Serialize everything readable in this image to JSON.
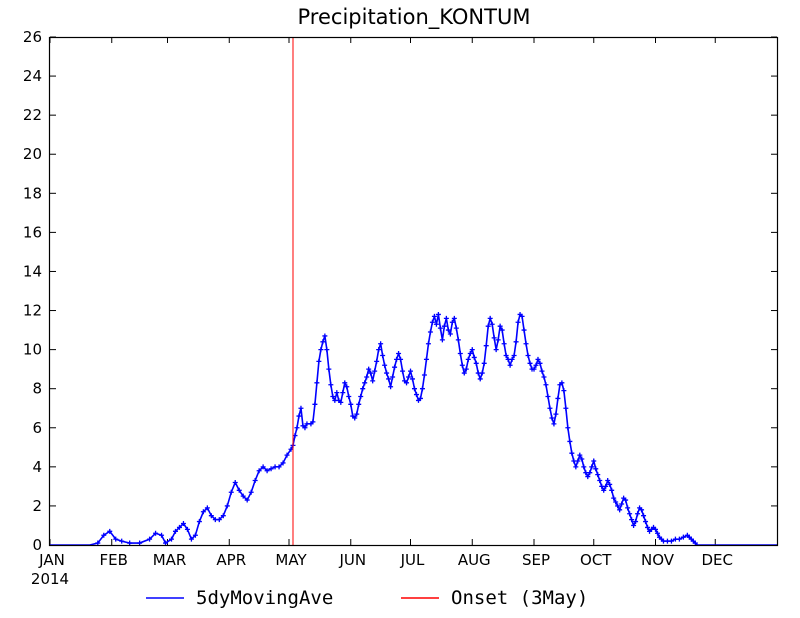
{
  "chart_data": {
    "type": "line",
    "title": "Precipitation_KONTUM",
    "year_label": "2014",
    "xlabel": "",
    "ylabel": "",
    "ylim": [
      0,
      26
    ],
    "y_ticks": [
      0,
      2,
      4,
      6,
      8,
      10,
      12,
      14,
      16,
      18,
      20,
      22,
      24,
      26
    ],
    "x_domain_days": [
      0,
      365
    ],
    "month_ticks": [
      {
        "label": "JAN",
        "day": 0
      },
      {
        "label": "FEB",
        "day": 31
      },
      {
        "label": "MAR",
        "day": 59
      },
      {
        "label": "APR",
        "day": 90
      },
      {
        "label": "MAY",
        "day": 120
      },
      {
        "label": "JUN",
        "day": 151
      },
      {
        "label": "JUL",
        "day": 181
      },
      {
        "label": "AUG",
        "day": 212
      },
      {
        "label": "SEP",
        "day": 243
      },
      {
        "label": "OCT",
        "day": 273
      },
      {
        "label": "NOV",
        "day": 304
      },
      {
        "label": "DEC",
        "day": 334
      }
    ],
    "grid": false,
    "legend_position": "bottom",
    "onset": {
      "name": "Onset (3May)",
      "day": 122,
      "color": "#ff0000"
    },
    "series": [
      {
        "name": "5dyMovingAve",
        "color": "#0000ff",
        "points": [
          [
            0,
            0.0
          ],
          [
            5,
            0.0
          ],
          [
            10,
            0.0
          ],
          [
            15,
            0.0
          ],
          [
            20,
            0.0
          ],
          [
            24,
            0.1
          ],
          [
            27,
            0.5
          ],
          [
            30,
            0.7
          ],
          [
            33,
            0.3
          ],
          [
            36,
            0.2
          ],
          [
            40,
            0.1
          ],
          [
            45,
            0.1
          ],
          [
            50,
            0.3
          ],
          [
            53,
            0.6
          ],
          [
            56,
            0.5
          ],
          [
            58,
            0.1
          ],
          [
            61,
            0.3
          ],
          [
            63,
            0.7
          ],
          [
            65,
            0.9
          ],
          [
            67,
            1.1
          ],
          [
            69,
            0.8
          ],
          [
            71,
            0.3
          ],
          [
            73,
            0.5
          ],
          [
            75,
            1.2
          ],
          [
            77,
            1.7
          ],
          [
            79,
            1.9
          ],
          [
            81,
            1.5
          ],
          [
            83,
            1.3
          ],
          [
            85,
            1.3
          ],
          [
            87,
            1.5
          ],
          [
            89,
            2.0
          ],
          [
            91,
            2.7
          ],
          [
            93,
            3.2
          ],
          [
            95,
            2.8
          ],
          [
            97,
            2.5
          ],
          [
            99,
            2.3
          ],
          [
            101,
            2.7
          ],
          [
            103,
            3.3
          ],
          [
            105,
            3.8
          ],
          [
            107,
            4.0
          ],
          [
            109,
            3.8
          ],
          [
            111,
            3.9
          ],
          [
            113,
            4.0
          ],
          [
            115,
            4.0
          ],
          [
            117,
            4.2
          ],
          [
            119,
            4.6
          ],
          [
            121,
            4.9
          ],
          [
            122,
            5.1
          ],
          [
            123,
            5.6
          ],
          [
            124,
            6.0
          ],
          [
            125,
            6.6
          ],
          [
            126,
            7.0
          ],
          [
            127,
            6.1
          ],
          [
            128,
            6.0
          ],
          [
            129,
            6.2
          ],
          [
            131,
            6.2
          ],
          [
            132,
            6.3
          ],
          [
            133,
            7.2
          ],
          [
            134,
            8.3
          ],
          [
            135,
            9.4
          ],
          [
            136,
            10.0
          ],
          [
            137,
            10.4
          ],
          [
            138,
            10.7
          ],
          [
            139,
            10.0
          ],
          [
            140,
            9.0
          ],
          [
            141,
            8.2
          ],
          [
            142,
            7.6
          ],
          [
            143,
            7.4
          ],
          [
            144,
            7.8
          ],
          [
            145,
            7.4
          ],
          [
            146,
            7.3
          ],
          [
            147,
            7.8
          ],
          [
            148,
            8.3
          ],
          [
            149,
            8.1
          ],
          [
            150,
            7.6
          ],
          [
            151,
            7.2
          ],
          [
            152,
            6.6
          ],
          [
            153,
            6.5
          ],
          [
            154,
            6.7
          ],
          [
            155,
            7.2
          ],
          [
            156,
            7.6
          ],
          [
            157,
            8.0
          ],
          [
            158,
            8.3
          ],
          [
            159,
            8.6
          ],
          [
            160,
            9.0
          ],
          [
            161,
            8.8
          ],
          [
            162,
            8.4
          ],
          [
            163,
            8.9
          ],
          [
            164,
            9.4
          ],
          [
            165,
            10.0
          ],
          [
            166,
            10.3
          ],
          [
            167,
            9.7
          ],
          [
            168,
            9.2
          ],
          [
            169,
            8.8
          ],
          [
            170,
            8.5
          ],
          [
            171,
            8.1
          ],
          [
            172,
            8.6
          ],
          [
            173,
            9.1
          ],
          [
            174,
            9.5
          ],
          [
            175,
            9.8
          ],
          [
            176,
            9.5
          ],
          [
            177,
            8.9
          ],
          [
            178,
            8.4
          ],
          [
            179,
            8.3
          ],
          [
            180,
            8.6
          ],
          [
            181,
            8.9
          ],
          [
            182,
            8.5
          ],
          [
            183,
            8.0
          ],
          [
            184,
            7.7
          ],
          [
            185,
            7.4
          ],
          [
            186,
            7.5
          ],
          [
            187,
            8.0
          ],
          [
            188,
            8.7
          ],
          [
            189,
            9.5
          ],
          [
            190,
            10.3
          ],
          [
            191,
            10.9
          ],
          [
            192,
            11.4
          ],
          [
            193,
            11.7
          ],
          [
            194,
            11.3
          ],
          [
            195,
            11.8
          ],
          [
            196,
            11.1
          ],
          [
            197,
            10.5
          ],
          [
            198,
            11.2
          ],
          [
            199,
            11.6
          ],
          [
            200,
            11.0
          ],
          [
            201,
            10.8
          ],
          [
            202,
            11.4
          ],
          [
            203,
            11.6
          ],
          [
            204,
            11.1
          ],
          [
            205,
            10.5
          ],
          [
            206,
            9.8
          ],
          [
            207,
            9.2
          ],
          [
            208,
            8.8
          ],
          [
            209,
            9.0
          ],
          [
            210,
            9.5
          ],
          [
            211,
            9.8
          ],
          [
            212,
            10.0
          ],
          [
            213,
            9.6
          ],
          [
            214,
            9.3
          ],
          [
            215,
            8.8
          ],
          [
            216,
            8.5
          ],
          [
            217,
            8.8
          ],
          [
            218,
            9.3
          ],
          [
            219,
            10.2
          ],
          [
            220,
            11.2
          ],
          [
            221,
            11.6
          ],
          [
            222,
            11.3
          ],
          [
            223,
            10.6
          ],
          [
            224,
            10.0
          ],
          [
            225,
            10.5
          ],
          [
            226,
            11.2
          ],
          [
            227,
            11.0
          ],
          [
            228,
            10.3
          ],
          [
            229,
            9.7
          ],
          [
            230,
            9.5
          ],
          [
            231,
            9.2
          ],
          [
            232,
            9.5
          ],
          [
            233,
            9.7
          ],
          [
            234,
            10.4
          ],
          [
            235,
            11.4
          ],
          [
            236,
            11.8
          ],
          [
            237,
            11.7
          ],
          [
            238,
            11.0
          ],
          [
            239,
            10.3
          ],
          [
            240,
            9.7
          ],
          [
            241,
            9.3
          ],
          [
            242,
            9.0
          ],
          [
            243,
            9.0
          ],
          [
            244,
            9.2
          ],
          [
            245,
            9.5
          ],
          [
            246,
            9.3
          ],
          [
            247,
            8.9
          ],
          [
            248,
            8.6
          ],
          [
            249,
            8.2
          ],
          [
            250,
            7.6
          ],
          [
            251,
            7.0
          ],
          [
            252,
            6.5
          ],
          [
            253,
            6.2
          ],
          [
            254,
            6.7
          ],
          [
            255,
            7.5
          ],
          [
            256,
            8.2
          ],
          [
            257,
            8.3
          ],
          [
            258,
            7.9
          ],
          [
            259,
            7.0
          ],
          [
            260,
            6.0
          ],
          [
            261,
            5.3
          ],
          [
            262,
            4.7
          ],
          [
            263,
            4.3
          ],
          [
            264,
            4.0
          ],
          [
            265,
            4.3
          ],
          [
            266,
            4.6
          ],
          [
            267,
            4.4
          ],
          [
            268,
            4.0
          ],
          [
            269,
            3.7
          ],
          [
            270,
            3.5
          ],
          [
            271,
            3.7
          ],
          [
            272,
            4.0
          ],
          [
            273,
            4.3
          ],
          [
            274,
            3.9
          ],
          [
            275,
            3.6
          ],
          [
            276,
            3.3
          ],
          [
            277,
            3.0
          ],
          [
            278,
            2.8
          ],
          [
            279,
            3.0
          ],
          [
            280,
            3.3
          ],
          [
            281,
            3.1
          ],
          [
            282,
            2.8
          ],
          [
            283,
            2.4
          ],
          [
            284,
            2.2
          ],
          [
            285,
            2.0
          ],
          [
            286,
            1.8
          ],
          [
            287,
            2.1
          ],
          [
            288,
            2.4
          ],
          [
            289,
            2.3
          ],
          [
            290,
            1.9
          ],
          [
            291,
            1.6
          ],
          [
            292,
            1.3
          ],
          [
            293,
            1.0
          ],
          [
            294,
            1.2
          ],
          [
            295,
            1.6
          ],
          [
            296,
            1.9
          ],
          [
            297,
            1.8
          ],
          [
            298,
            1.5
          ],
          [
            299,
            1.2
          ],
          [
            300,
            0.9
          ],
          [
            301,
            0.7
          ],
          [
            302,
            0.8
          ],
          [
            303,
            0.9
          ],
          [
            304,
            0.8
          ],
          [
            305,
            0.6
          ],
          [
            306,
            0.4
          ],
          [
            307,
            0.3
          ],
          [
            308,
            0.2
          ],
          [
            310,
            0.2
          ],
          [
            312,
            0.2
          ],
          [
            314,
            0.3
          ],
          [
            316,
            0.3
          ],
          [
            318,
            0.4
          ],
          [
            320,
            0.5
          ],
          [
            321,
            0.4
          ],
          [
            322,
            0.3
          ],
          [
            323,
            0.2
          ],
          [
            324,
            0.1
          ],
          [
            325,
            0.0
          ],
          [
            330,
            0.0
          ],
          [
            335,
            0.0
          ],
          [
            340,
            0.0
          ],
          [
            345,
            0.0
          ],
          [
            350,
            0.0
          ],
          [
            355,
            0.0
          ],
          [
            360,
            0.0
          ],
          [
            365,
            0.0
          ]
        ]
      }
    ]
  }
}
